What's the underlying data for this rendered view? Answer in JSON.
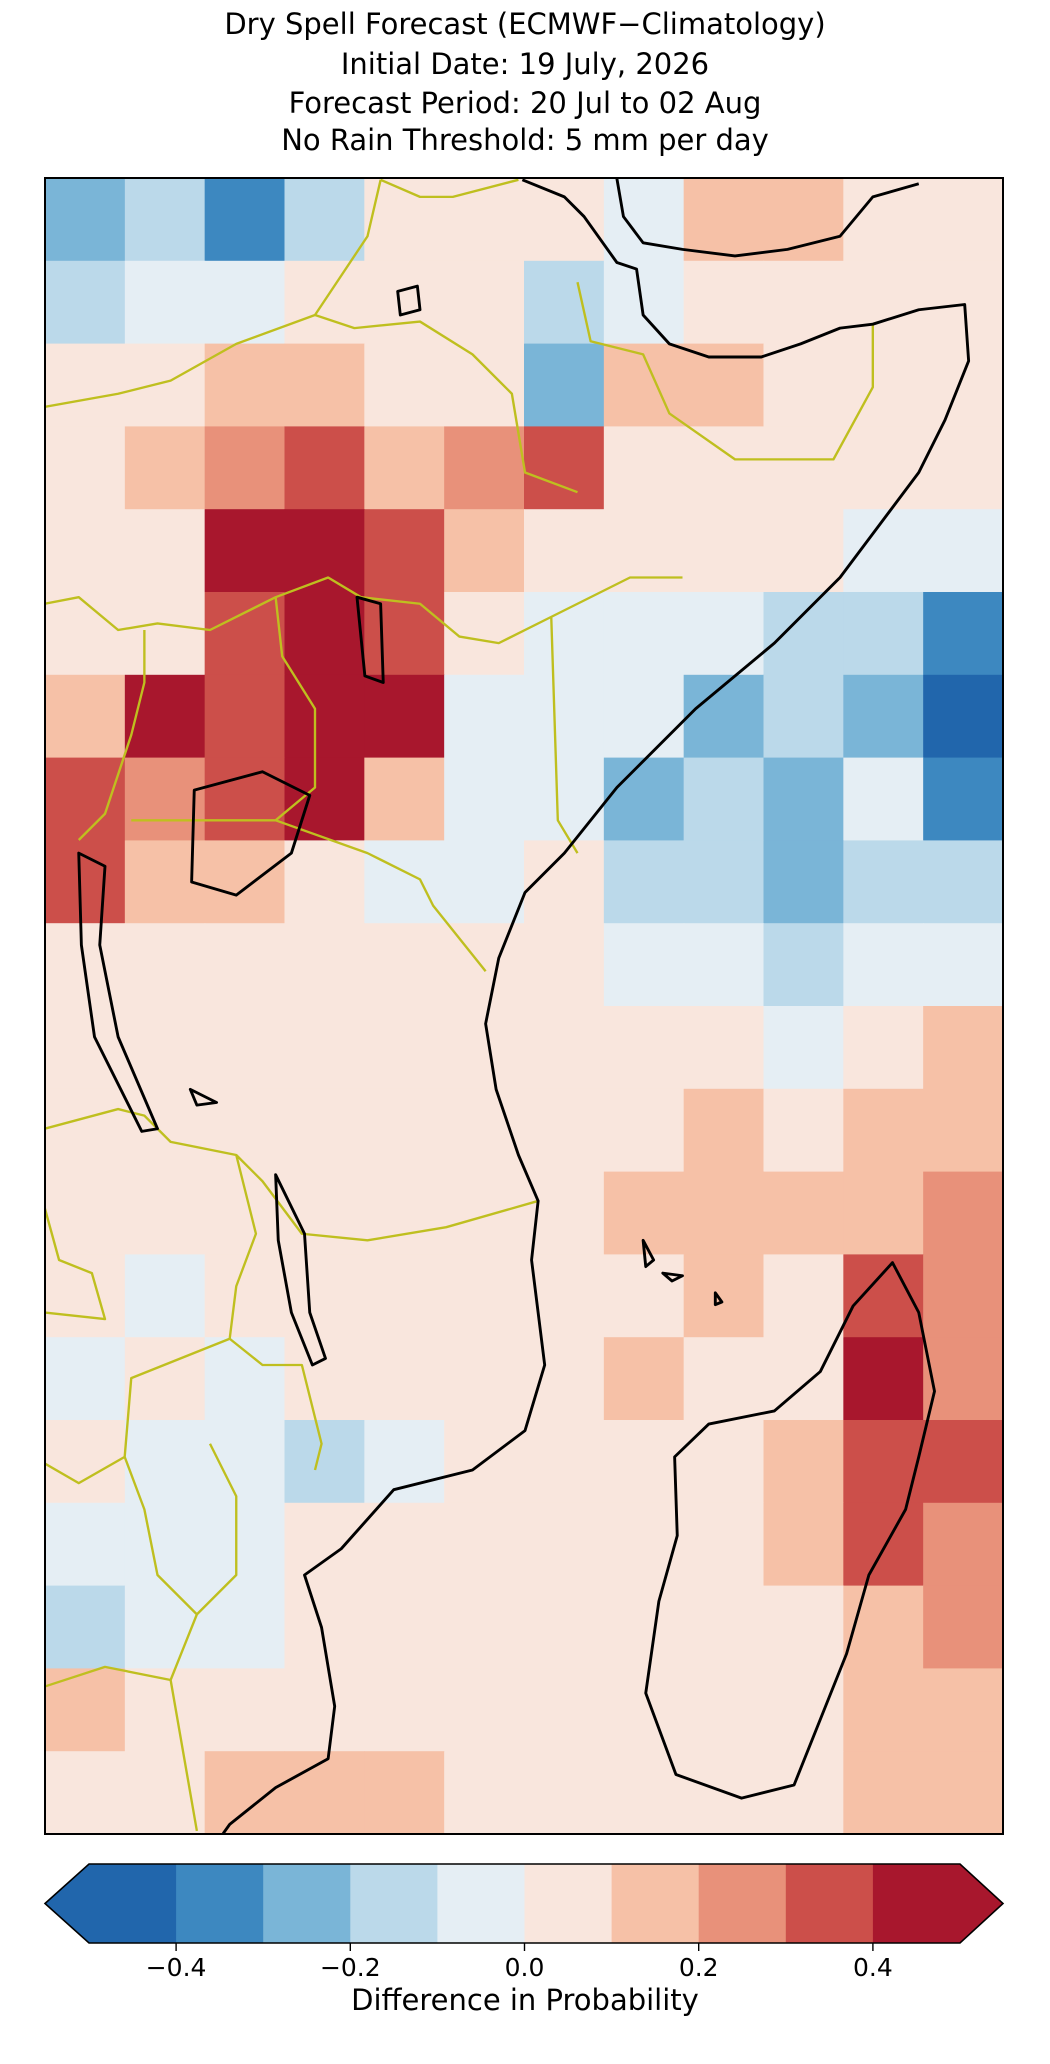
{
  "chart_data": {
    "type": "heatmap",
    "title": [
      "Dry Spell Forecast (ECMWF−Climatology)",
      "Initial Date: 19 July, 2026",
      "Forecast Period: 20 Jul to 02 Aug",
      "No Rain Threshold: 5 mm per day"
    ],
    "colorbar_label": "Difference in Probability",
    "levels": [
      -0.5,
      -0.4,
      -0.3,
      -0.2,
      -0.1,
      0,
      0.1,
      0.2,
      0.3,
      0.4,
      0.5
    ],
    "colors": [
      "#2166ac",
      "#3d88c0",
      "#7ab5d7",
      "#bbd9ea",
      "#e5eef4",
      "#f9e6dd",
      "#f6c1a7",
      "#e8917a",
      "#cc4f4a",
      "#a8172d"
    ],
    "extend": "both",
    "xticks": [
      {
        "value": -0.4,
        "label": "−0.4"
      },
      {
        "value": -0.2,
        "label": "−0.2"
      },
      {
        "value": 0,
        "label": "0.0"
      },
      0.2,
      0.4
    ],
    "grid": [
      [
        -0.3,
        -0.2,
        -0.35,
        -0.15,
        0.05,
        0.05,
        0.05,
        -0.1,
        0.1,
        0.15,
        0.05,
        0.05
      ],
      [
        -0.15,
        -0.1,
        -0.1,
        0.05,
        0.05,
        0.05,
        -0.2,
        -0.1,
        0.05,
        0.05,
        0.05,
        0.05
      ],
      [
        0.05,
        0.05,
        0.1,
        0.15,
        0.05,
        0.05,
        -0.25,
        0.1,
        0.15,
        0.05,
        0.05,
        0.05
      ],
      [
        0.05,
        0.1,
        0.2,
        0.3,
        0.1,
        0.2,
        0.35,
        0.05,
        0.05,
        0.05,
        0.05,
        0.05
      ],
      [
        0.05,
        0.05,
        0.45,
        0.45,
        0.35,
        0.1,
        0.05,
        0.05,
        0.05,
        0.05,
        -0.05,
        -0.1
      ],
      [
        0.05,
        0.05,
        0.3,
        0.45,
        0.3,
        0.05,
        -0.05,
        -0.05,
        -0.1,
        -0.15,
        -0.2,
        -0.35
      ],
      [
        0.1,
        0.45,
        0.3,
        0.45,
        0.4,
        -0.05,
        -0.05,
        -0.1,
        -0.25,
        -0.2,
        -0.25,
        -0.45
      ],
      [
        0.3,
        0.2,
        0.3,
        0.4,
        0.1,
        -0.05,
        -0.05,
        -0.3,
        -0.15,
        -0.3,
        -0.1,
        -0.4
      ],
      [
        0.3,
        0.15,
        0.1,
        0.05,
        -0.1,
        -0.05,
        0.05,
        -0.2,
        -0.2,
        -0.3,
        -0.15,
        -0.2
      ],
      [
        0.05,
        0.05,
        0.05,
        0.05,
        0.05,
        0.05,
        0.05,
        -0.05,
        -0.1,
        -0.15,
        -0.1,
        -0.1
      ],
      [
        0.05,
        0.05,
        0.05,
        0.05,
        0.05,
        0.05,
        0.05,
        0.05,
        0.05,
        -0.05,
        0.05,
        0.1
      ],
      [
        0.05,
        0.05,
        0.05,
        0.05,
        0.05,
        0.05,
        0.05,
        0.05,
        0.1,
        0.05,
        0.1,
        0.15
      ],
      [
        0.05,
        0.05,
        0.05,
        0.05,
        0.05,
        0.05,
        0.05,
        0.1,
        0.15,
        0.1,
        0.15,
        0.2
      ],
      [
        0.05,
        -0.05,
        0.05,
        0.05,
        0.05,
        0.05,
        0.05,
        0.05,
        0.1,
        0.05,
        0.35,
        0.25
      ],
      [
        -0.05,
        0.05,
        -0.05,
        0.05,
        0.05,
        0.05,
        0.05,
        0.1,
        0.05,
        0.05,
        0.4,
        0.25
      ],
      [
        0.05,
        -0.05,
        -0.05,
        -0.2,
        -0.1,
        0.05,
        0.05,
        0.05,
        0.05,
        0.1,
        0.3,
        0.35
      ],
      [
        -0.05,
        -0.05,
        -0.05,
        0.05,
        0.05,
        0.05,
        0.05,
        0.05,
        0.05,
        0.1,
        0.3,
        0.25
      ],
      [
        -0.15,
        -0.1,
        -0.05,
        0.05,
        0.05,
        0.05,
        0.05,
        0.05,
        0.05,
        0.05,
        0.15,
        0.2
      ],
      [
        0.1,
        0.05,
        0.05,
        0.05,
        0.05,
        0.05,
        0.05,
        0.05,
        0.05,
        0.05,
        0.15,
        0.15
      ],
      [
        0.05,
        0.05,
        0.1,
        0.15,
        0.15,
        0.05,
        0.05,
        0.05,
        0.05,
        0.05,
        0.15,
        0.1
      ]
    ]
  }
}
